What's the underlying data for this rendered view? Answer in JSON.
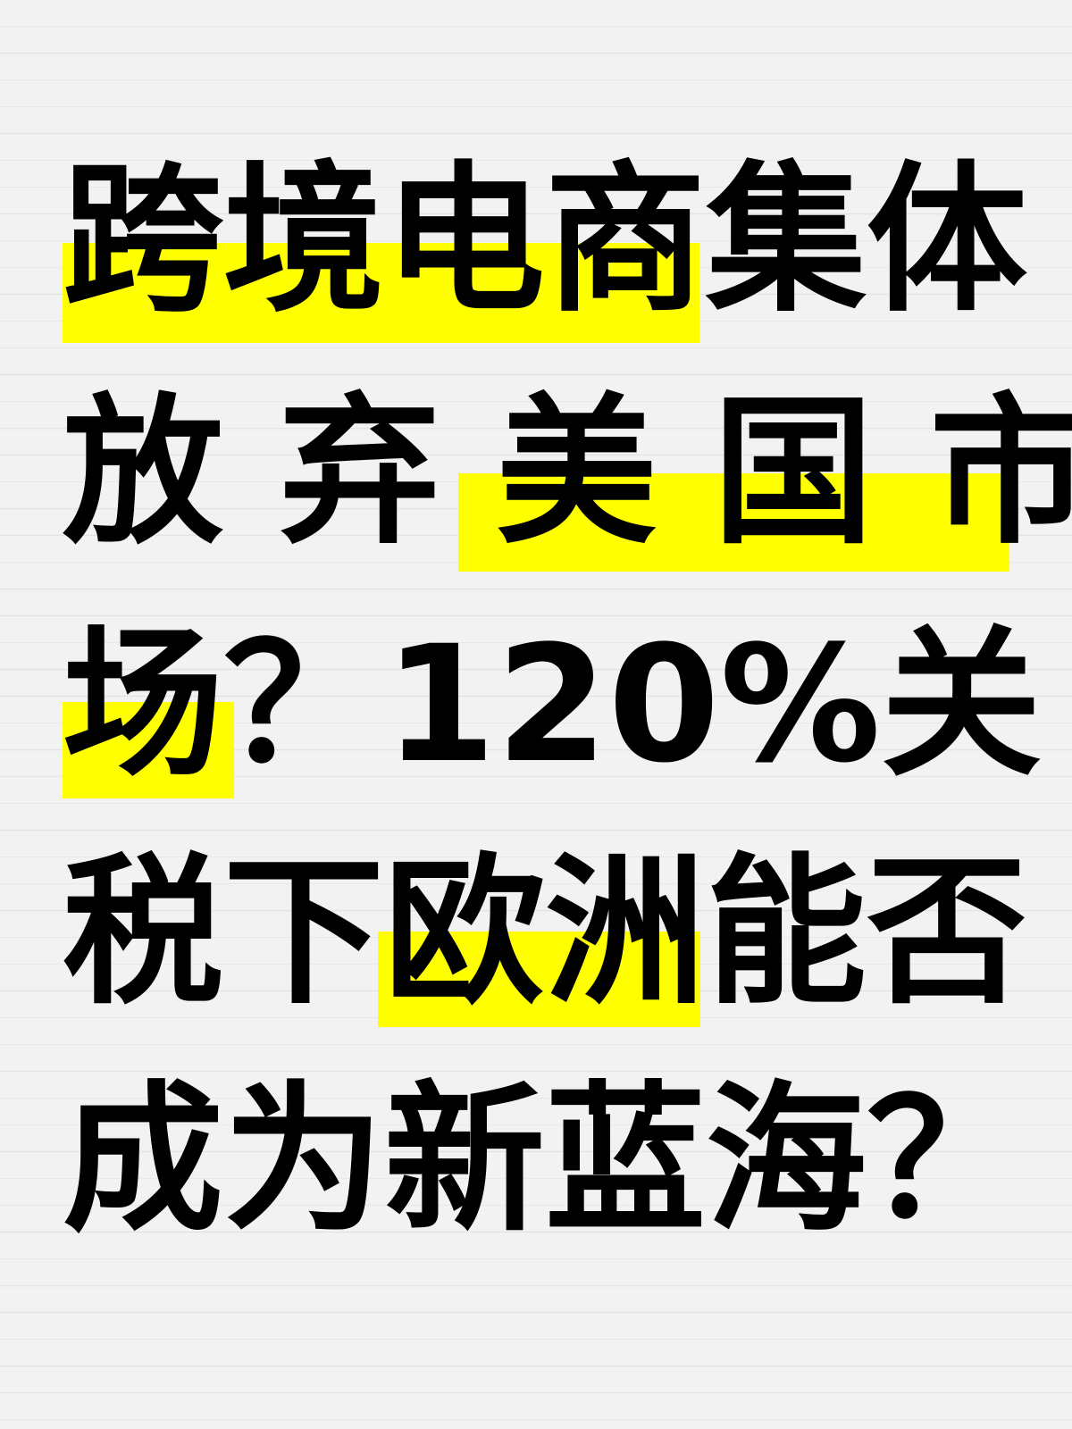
{
  "headline": {
    "lines": [
      "跨境电商集体",
      "放 弃 美 国 市",
      "场？120%关",
      "税下欧洲能否",
      "成为新蓝海？"
    ]
  },
  "colors": {
    "background": "#f2f2f2",
    "highlight": "#ffff00",
    "text": "#000000"
  }
}
